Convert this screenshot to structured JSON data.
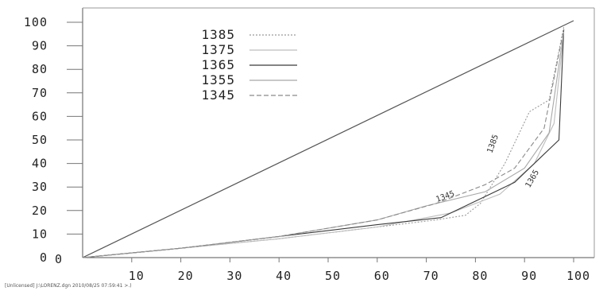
{
  "chart_data": {
    "type": "line",
    "title": "",
    "xlabel": "",
    "ylabel": "",
    "xlim": [
      0,
      100
    ],
    "ylim": [
      0,
      100
    ],
    "x_ticks": [
      "10",
      "20",
      "30",
      "40",
      "50",
      "60",
      "70",
      "80",
      "90",
      "100"
    ],
    "y_ticks": [
      "100",
      "90",
      "80",
      "70",
      "60",
      "50",
      "40",
      "30",
      "20",
      "10",
      "0"
    ],
    "grid": false,
    "legend_position": "top-left",
    "diagonal": {
      "x": [
        0,
        100
      ],
      "y": [
        0,
        100
      ]
    },
    "series": [
      {
        "name": "1385",
        "color": "#9a9a9a",
        "dash": "2,2",
        "x": [
          0,
          20,
          40,
          60,
          72,
          78,
          81,
          86,
          91,
          95,
          98
        ],
        "y": [
          0,
          4,
          8,
          13,
          16,
          18,
          23,
          40,
          62,
          67,
          98
        ]
      },
      {
        "name": "1375",
        "color": "#bdbdbd",
        "dash": "",
        "x": [
          0,
          20,
          40,
          60,
          75,
          85,
          92,
          96,
          98
        ],
        "y": [
          0,
          4,
          8,
          13,
          19,
          27,
          40,
          57,
          95
        ]
      },
      {
        "name": "1365",
        "color": "#3a3a3a",
        "dash": "",
        "x": [
          0,
          20,
          40,
          60,
          73,
          80,
          88,
          93,
          97,
          98
        ],
        "y": [
          0,
          4,
          9,
          14,
          17,
          24,
          32,
          42,
          50,
          97
        ]
      },
      {
        "name": "1355",
        "color": "#a8a8a8",
        "dash": "",
        "x": [
          0,
          20,
          40,
          60,
          70,
          82,
          90,
          95,
          98
        ],
        "y": [
          0,
          4,
          9,
          16,
          22,
          28,
          38,
          53,
          96
        ]
      },
      {
        "name": "1345",
        "color": "#8a8a8a",
        "dash": "6,3",
        "x": [
          0,
          20,
          40,
          60,
          72,
          82,
          88,
          94,
          98
        ],
        "y": [
          0,
          4,
          9,
          16,
          23,
          31,
          38,
          55,
          97
        ]
      }
    ],
    "annotations": [
      {
        "text": "1385",
        "x": 84,
        "y": 48,
        "angle": -70
      },
      {
        "text": "1365",
        "x": 92,
        "y": 33,
        "angle": -60
      },
      {
        "text": "1345",
        "x": 74,
        "y": 25,
        "angle": -20
      }
    ]
  },
  "footer": "[Unlicensed] J:\\LORENZ.dgn  2010/08/25 07:59:41 >.)"
}
